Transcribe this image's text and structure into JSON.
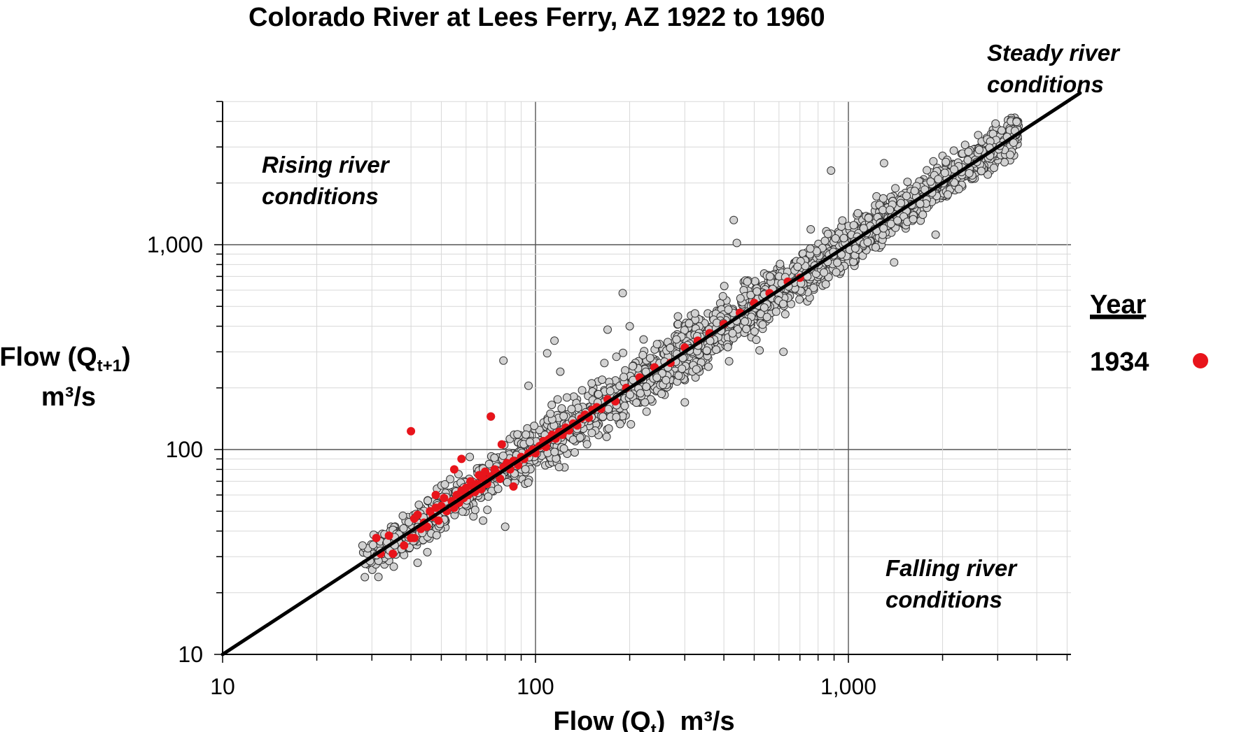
{
  "chart_data": {
    "type": "scatter",
    "title": "Colorado River at Lees Ferry, AZ 1922 to 1960",
    "xlabel": {
      "prefix": "Flow (Q",
      "sub": "t",
      "suffix": ")  m³/s"
    },
    "ylabel": {
      "line1_prefix": "Flow (Q",
      "line1_sub": "t+1",
      "line1_suffix": ")",
      "line2": "m³/s"
    },
    "x_scale": "log",
    "y_scale": "log",
    "xlim": [
      10,
      5500
    ],
    "ylim": [
      10,
      5000
    ],
    "x_ticks": [
      {
        "value": 10,
        "label": "10"
      },
      {
        "value": 100,
        "label": "100"
      },
      {
        "value": 1000,
        "label": "1,000"
      }
    ],
    "y_ticks": [
      {
        "value": 10,
        "label": "10"
      },
      {
        "value": 100,
        "label": "100"
      },
      {
        "value": 1000,
        "label": "1,000"
      }
    ],
    "grid": true,
    "reference_line": {
      "name": "Steady river conditions (Qt+1 = Qt)",
      "from": [
        10,
        10
      ],
      "to": [
        5500,
        5500
      ]
    },
    "regions": [
      {
        "name": "rising",
        "line1": "Rising river",
        "line2": "conditions"
      },
      {
        "name": "falling",
        "line1": "Falling river",
        "line2": "conditions"
      },
      {
        "name": "steady",
        "line1": "Steady river",
        "line2": "conditions"
      }
    ],
    "legend": {
      "title": "Year",
      "entries": [
        {
          "label": "1934",
          "color": "#e8141b"
        }
      ],
      "position": "right"
    },
    "series": [
      {
        "name": "All years 1922–1960",
        "color": "#d2d2d2",
        "edge_color": "#333333",
        "count": 2600,
        "x_range": [
          28,
          3500
        ],
        "scatter_sigma_log10": 0.045,
        "outliers": [
          [
            79,
            272
          ],
          [
            115,
            340
          ],
          [
            109,
            295
          ],
          [
            95,
            205
          ],
          [
            72,
            145
          ],
          [
            42,
            28
          ],
          [
            80,
            42
          ],
          [
            68,
            45
          ],
          [
            190,
            580
          ],
          [
            430,
            1320
          ],
          [
            880,
            2300
          ],
          [
            1300,
            2500
          ],
          [
            440,
            1020
          ],
          [
            170,
            385
          ],
          [
            520,
            305
          ],
          [
            620,
            300
          ],
          [
            300,
            170
          ],
          [
            1400,
            820
          ],
          [
            1900,
            1120
          ],
          [
            28,
            34
          ],
          [
            120,
            240
          ],
          [
            200,
            400
          ]
        ]
      },
      {
        "name": "1934",
        "color": "#e8141b",
        "points": [
          [
            31,
            37
          ],
          [
            32,
            31
          ],
          [
            34,
            38
          ],
          [
            35,
            31
          ],
          [
            38,
            34
          ],
          [
            40,
            37
          ],
          [
            41,
            46
          ],
          [
            42,
            48
          ],
          [
            43,
            41
          ],
          [
            44,
            44
          ],
          [
            45,
            42
          ],
          [
            46,
            50
          ],
          [
            47,
            47
          ],
          [
            48,
            52
          ],
          [
            49,
            45
          ],
          [
            50,
            53
          ],
          [
            51,
            58
          ],
          [
            52,
            50
          ],
          [
            54,
            56
          ],
          [
            55,
            52
          ],
          [
            56,
            60
          ],
          [
            57,
            55
          ],
          [
            58,
            63
          ],
          [
            59,
            58
          ],
          [
            60,
            65
          ],
          [
            61,
            60
          ],
          [
            62,
            70
          ],
          [
            63,
            66
          ],
          [
            64,
            62
          ],
          [
            65,
            68
          ],
          [
            66,
            75
          ],
          [
            67,
            64
          ],
          [
            68,
            72
          ],
          [
            69,
            78
          ],
          [
            70,
            68
          ],
          [
            72,
            74
          ],
          [
            74,
            80
          ],
          [
            75,
            77
          ],
          [
            77,
            72
          ],
          [
            79,
            82
          ],
          [
            81,
            86
          ],
          [
            83,
            80
          ],
          [
            85,
            88
          ],
          [
            88,
            84
          ],
          [
            90,
            92
          ],
          [
            92,
            90
          ],
          [
            95,
            96
          ],
          [
            98,
            100
          ],
          [
            100,
            96
          ],
          [
            103,
            104
          ],
          [
            106,
            110
          ],
          [
            108,
            103
          ],
          [
            110,
            112
          ],
          [
            113,
            118
          ],
          [
            116,
            113
          ],
          [
            119,
            122
          ],
          [
            122,
            118
          ],
          [
            125,
            128
          ],
          [
            128,
            124
          ],
          [
            132,
            134
          ],
          [
            136,
            131
          ],
          [
            140,
            142
          ],
          [
            144,
            148
          ],
          [
            148,
            143
          ],
          [
            152,
            156
          ],
          [
            157,
            161
          ],
          [
            162,
            158
          ],
          [
            170,
            176
          ],
          [
            180,
            172
          ],
          [
            195,
            200
          ],
          [
            215,
            225
          ],
          [
            240,
            252
          ],
          [
            270,
            265
          ],
          [
            300,
            315
          ],
          [
            330,
            340
          ],
          [
            360,
            370
          ],
          [
            400,
            410
          ],
          [
            450,
            465
          ],
          [
            500,
            520
          ],
          [
            560,
            580
          ],
          [
            640,
            660
          ],
          [
            700,
            690
          ],
          [
            40,
            123
          ],
          [
            72,
            145
          ],
          [
            78,
            106
          ],
          [
            41,
            37
          ],
          [
            55,
            80
          ],
          [
            58,
            90
          ],
          [
            48,
            60
          ],
          [
            85,
            66
          ]
        ]
      }
    ]
  }
}
